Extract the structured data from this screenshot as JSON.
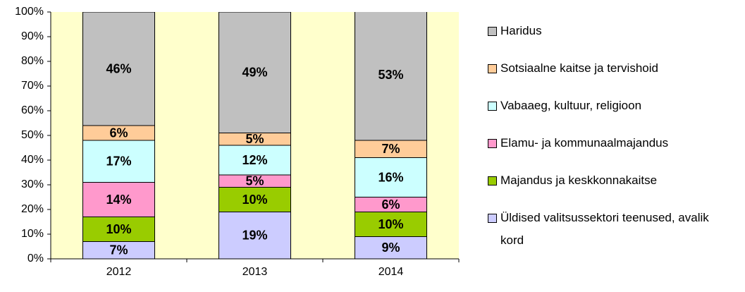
{
  "chart_data": {
    "type": "stacked_bar",
    "categories": [
      "2012",
      "2013",
      "2014"
    ],
    "series": [
      {
        "name": "Üldised valitsussektori teenused, avalik kord",
        "color": "#ccccff",
        "values": [
          7,
          19,
          9
        ],
        "value_labels": [
          "7%",
          "19%",
          "9%"
        ]
      },
      {
        "name": "Majandus ja keskkonnakaitse",
        "color": "#99cc00",
        "values": [
          10,
          10,
          10
        ],
        "value_labels": [
          "10%",
          "10%",
          "10%"
        ]
      },
      {
        "name": "Elamu- ja kommunaalmajandus",
        "color": "#ff99cc",
        "values": [
          14,
          5,
          6
        ],
        "value_labels": [
          "14%",
          "5%",
          "6%"
        ]
      },
      {
        "name": "Vabaaeg, kultuur, religioon",
        "color": "#ccffff",
        "values": [
          17,
          12,
          16
        ],
        "value_labels": [
          "17%",
          "12%",
          "16%"
        ]
      },
      {
        "name": "Sotsiaalne kaitse ja tervishoid",
        "color": "#ffcc99",
        "values": [
          6,
          5,
          7
        ],
        "value_labels": [
          "6%",
          "5%",
          "7%"
        ]
      },
      {
        "name": "Haridus",
        "color": "#c0c0c0",
        "values": [
          46,
          49,
          53
        ],
        "value_labels": [
          "46%",
          "49%",
          "53%"
        ]
      }
    ],
    "ylim": [
      0,
      100
    ],
    "yticks": [
      {
        "value": 0,
        "label": "0%"
      },
      {
        "value": 10,
        "label": "10%"
      },
      {
        "value": 20,
        "label": "20%"
      },
      {
        "value": 30,
        "label": "30%"
      },
      {
        "value": 40,
        "label": "40%"
      },
      {
        "value": 50,
        "label": "50%"
      },
      {
        "value": 60,
        "label": "60%"
      },
      {
        "value": 70,
        "label": "70%"
      },
      {
        "value": 80,
        "label": "80%"
      },
      {
        "value": 90,
        "label": "90%"
      },
      {
        "value": 100,
        "label": "100%"
      }
    ],
    "legend": "right"
  }
}
